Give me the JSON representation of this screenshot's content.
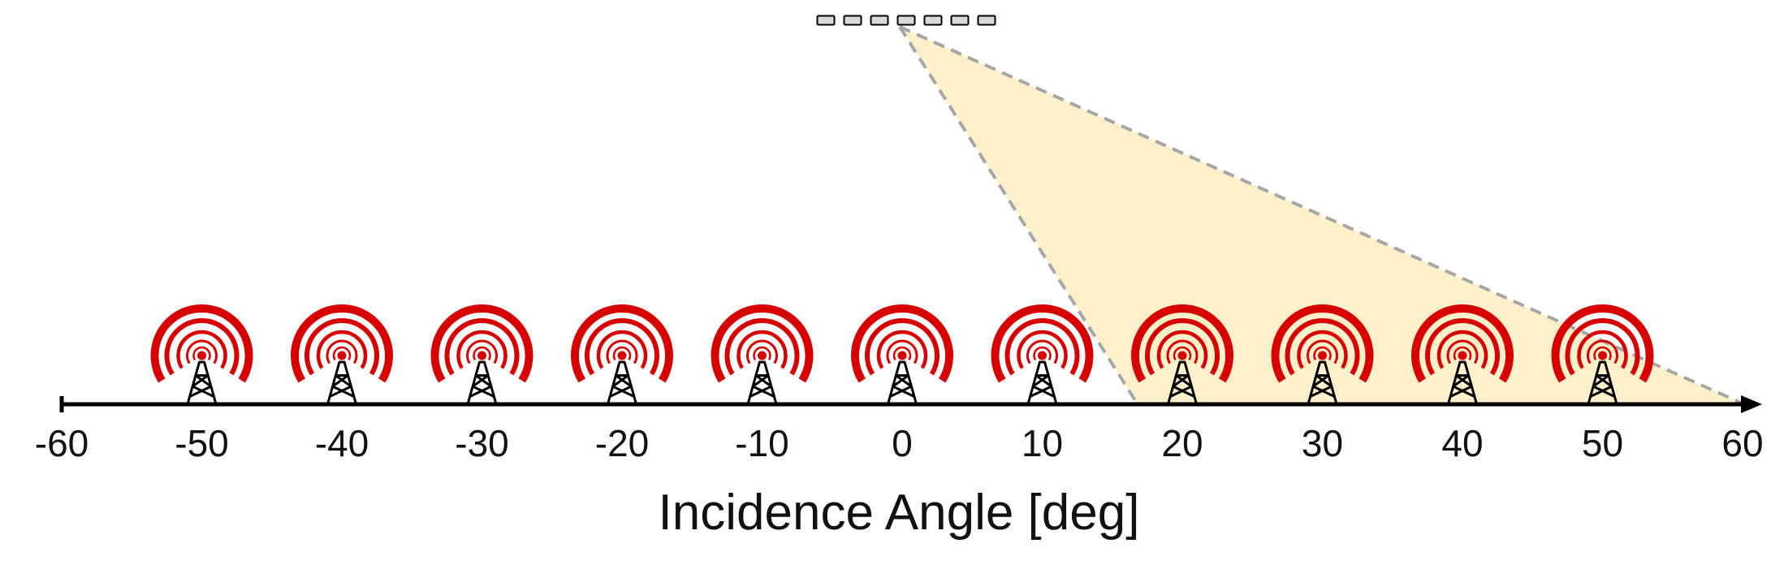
{
  "diagram": {
    "xlabel": "Incidence Angle [deg]",
    "axis": {
      "min": -60,
      "max": 60
    },
    "ticks": [
      "-60",
      "-50",
      "-40",
      "-30",
      "-20",
      "-10",
      "0",
      "10",
      "20",
      "30",
      "40",
      "50",
      "60"
    ],
    "towers": [
      -50,
      -40,
      -30,
      -20,
      -10,
      0,
      10,
      20,
      30,
      40,
      50
    ],
    "antenna_array": {
      "elements": 7,
      "center": 0
    },
    "coverage": {
      "from": 20,
      "to": 60
    },
    "colors": {
      "signal_red": "#d70000",
      "coverage_fill": "#fff0cc",
      "coverage_edge": "#a6a6a6",
      "antenna_element": "#d9d9d9",
      "axis": "#000000"
    },
    "icons": {
      "tower": "radio-tower-icon",
      "array": "antenna-array-icon"
    }
  }
}
